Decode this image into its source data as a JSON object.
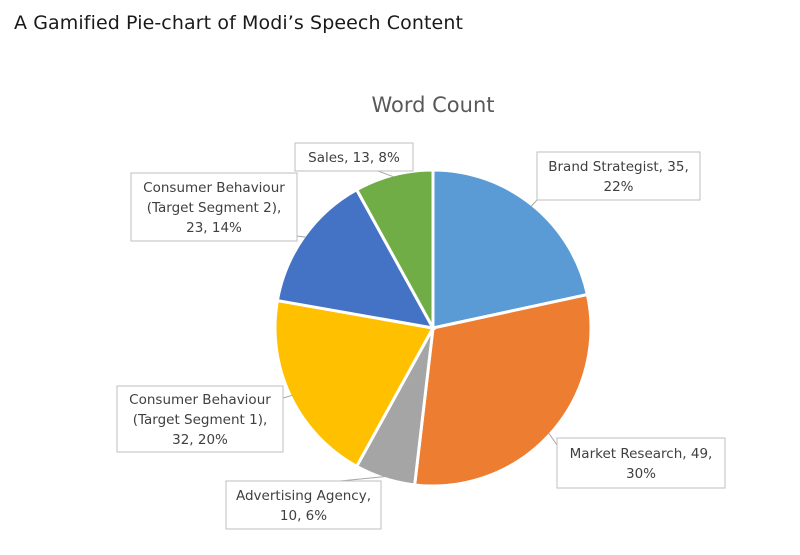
{
  "page_heading": "A Gamified Pie-chart of Modi’s Speech Content",
  "chart_data": {
    "type": "pie",
    "title": "Word Count",
    "start_angle_deg": 0,
    "direction": "clockwise",
    "slices": [
      {
        "label": "Brand Strategist",
        "value": 35,
        "percent": "22%",
        "color": "#5B9BD5",
        "label_lines": [
          "Brand Strategist, 35,",
          "22%"
        ]
      },
      {
        "label": "Market Research",
        "value": 49,
        "percent": "30%",
        "color": "#ED7D31",
        "label_lines": [
          "Market Research, 49,",
          "30%"
        ]
      },
      {
        "label": "Advertising Agency",
        "value": 10,
        "percent": "6%",
        "color": "#A5A5A5",
        "label_lines": [
          "Advertising Agency,",
          "10, 6%"
        ]
      },
      {
        "label": "Consumer Behaviour (Target Segment 1)",
        "value": 32,
        "percent": "20%",
        "color": "#FFC000",
        "label_lines": [
          "Consumer Behaviour",
          "(Target Segment 1),",
          "32, 20%"
        ]
      },
      {
        "label": "Consumer Behaviour (Target Segment 2)",
        "value": 23,
        "percent": "14%",
        "color": "#4472C4",
        "label_lines": [
          "Consumer Behaviour",
          "(Target Segment 2),",
          "23, 14%"
        ]
      },
      {
        "label": "Sales",
        "value": 13,
        "percent": "8%",
        "color": "#70AD47",
        "label_lines": [
          "Sales, 13, 8%"
        ]
      }
    ]
  }
}
